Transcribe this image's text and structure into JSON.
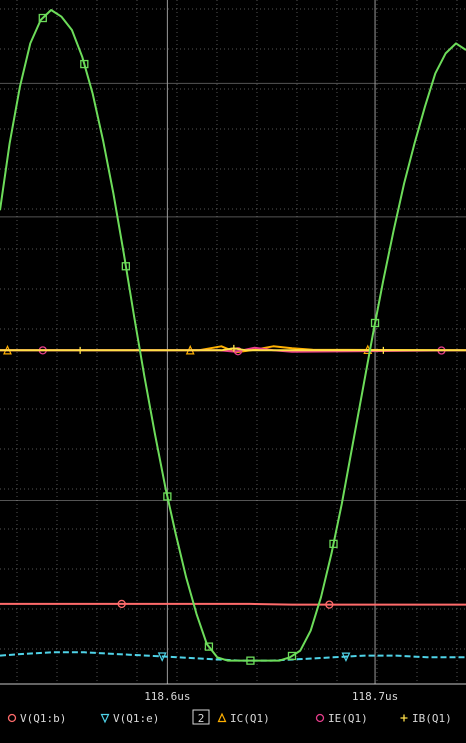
{
  "chart_data": {
    "type": "line",
    "x_ticks": [
      {
        "value": 118.6,
        "label": "118.6us"
      },
      {
        "value": 118.7,
        "label": "118.7us"
      }
    ],
    "xlim": [
      118.5194,
      118.7438
    ],
    "ylim": [
      -1.0,
      1.05
    ],
    "grid": true,
    "page_indicator": "2",
    "series": [
      {
        "name": "V(Q1:b)",
        "color": "#ff6b6b",
        "marker": "circle",
        "x": [
          118.5194,
          118.54,
          118.56,
          118.58,
          118.6,
          118.62,
          118.64,
          118.66,
          118.68,
          118.7,
          118.72,
          118.7438
        ],
        "y": [
          -0.76,
          -0.76,
          -0.76,
          -0.76,
          -0.76,
          -0.76,
          -0.76,
          -0.762,
          -0.762,
          -0.762,
          -0.762,
          -0.762
        ],
        "marker_x": [
          118.578,
          118.678
        ]
      },
      {
        "name": "V(Q1:e)",
        "color": "#4fd3e8",
        "marker": "triangle-down",
        "x": [
          118.5194,
          118.53,
          118.545,
          118.56,
          118.575,
          118.59,
          118.605,
          118.62,
          118.635,
          118.65,
          118.665,
          118.68,
          118.695,
          118.71,
          118.725,
          118.7438
        ],
        "y": [
          -0.915,
          -0.91,
          -0.905,
          -0.905,
          -0.91,
          -0.915,
          -0.92,
          -0.925,
          -0.93,
          -0.93,
          -0.925,
          -0.92,
          -0.915,
          -0.915,
          -0.92,
          -0.92
        ],
        "marker_x": [
          118.5975,
          118.686
        ]
      },
      {
        "name": "IC(Q1)",
        "color": "#ffb000",
        "marker": "triangle-up",
        "x": [
          118.5194,
          118.615,
          118.626,
          118.633,
          118.642,
          118.651,
          118.66,
          118.67,
          118.7438
        ],
        "y": [
          0.0,
          0.0,
          0.012,
          -0.006,
          0.002,
          0.012,
          0.006,
          0.002,
          0.0
        ],
        "marker_x": [
          118.523,
          118.611,
          118.6965
        ]
      },
      {
        "name": "IE(Q1)",
        "color": "#e83e8c",
        "marker": "circle",
        "x": [
          118.5194,
          118.625,
          118.633,
          118.642,
          118.651,
          118.66,
          118.7438
        ],
        "y": [
          0.0,
          0.0,
          -0.004,
          0.008,
          0.0,
          -0.004,
          0.0
        ],
        "marker_x": [
          118.54,
          118.634,
          118.732
        ]
      },
      {
        "name": "IB(Q1)",
        "color": "#ffe04a",
        "marker": "plus",
        "x": [
          118.5194,
          118.626,
          118.632,
          118.638,
          118.7438
        ],
        "y": [
          0.0,
          0.0,
          0.006,
          0.0,
          0.0
        ],
        "marker_x": [
          118.558,
          118.632,
          118.704
        ]
      },
      {
        "name": "",
        "color": "#6ddc5a",
        "marker": "square",
        "x": [
          118.5194,
          118.524,
          118.529,
          118.534,
          118.539,
          118.544,
          118.549,
          118.554,
          118.559,
          118.564,
          118.569,
          118.574,
          118.579,
          118.584,
          118.589,
          118.594,
          118.599,
          118.604,
          118.609,
          118.614,
          118.619,
          118.624,
          118.629,
          118.634,
          118.639,
          118.644,
          118.649,
          118.654,
          118.659,
          118.664,
          118.669,
          118.674,
          118.679,
          118.684,
          118.689,
          118.694,
          118.699,
          118.704,
          118.709,
          118.714,
          118.719,
          118.724,
          118.729,
          118.734,
          118.739,
          118.7438
        ],
        "y": [
          0.42,
          0.62,
          0.79,
          0.92,
          0.99,
          1.02,
          1.0,
          0.96,
          0.88,
          0.77,
          0.63,
          0.47,
          0.29,
          0.1,
          -0.08,
          -0.25,
          -0.41,
          -0.55,
          -0.68,
          -0.79,
          -0.88,
          -0.92,
          -0.93,
          -0.93,
          -0.93,
          -0.93,
          -0.93,
          -0.93,
          -0.92,
          -0.9,
          -0.84,
          -0.74,
          -0.61,
          -0.46,
          -0.29,
          -0.12,
          0.05,
          0.21,
          0.36,
          0.5,
          0.62,
          0.73,
          0.83,
          0.89,
          0.92,
          0.9
        ],
        "marker_x": [
          118.54,
          118.56,
          118.58,
          118.6,
          118.62,
          118.64,
          118.66,
          118.68,
          118.7
        ]
      }
    ]
  }
}
